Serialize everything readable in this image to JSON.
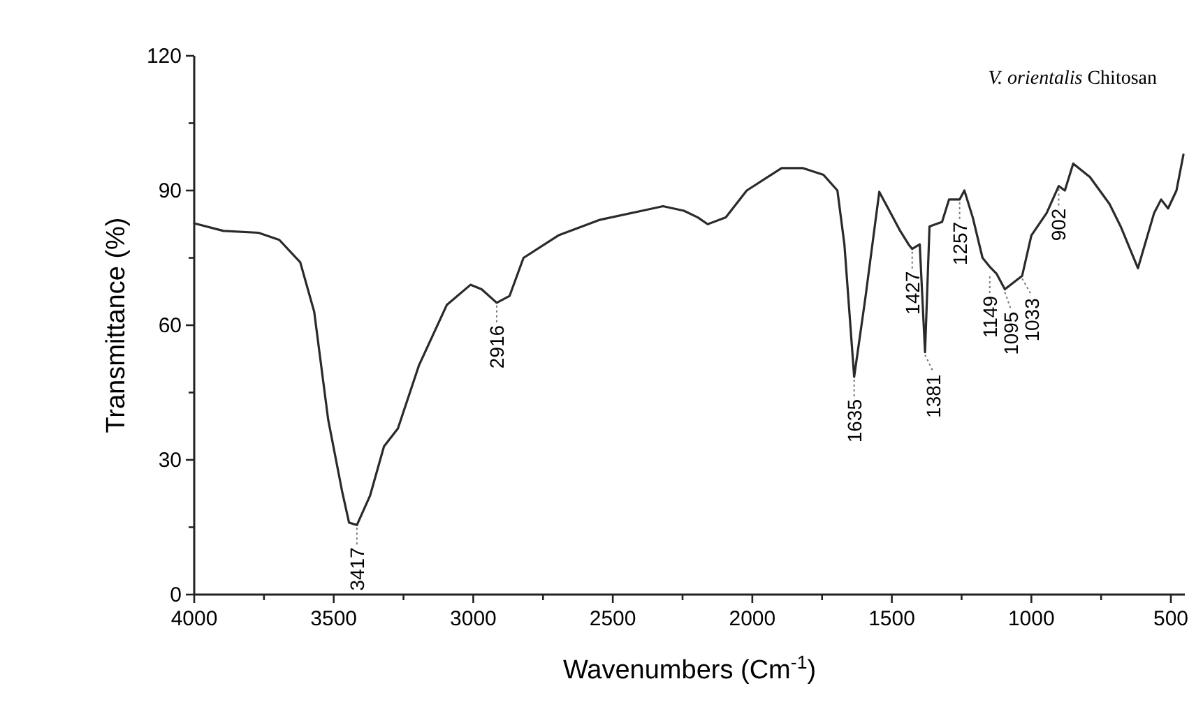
{
  "chart_data": {
    "type": "line",
    "title": "V. orientalis Chitosan",
    "xlabel": "Wavenumbers (Cm$^{-1}$)",
    "ylabel": "Transmittance (%)",
    "xlim": [
      4000,
      450
    ],
    "ylim": [
      0,
      120
    ],
    "xticks": [
      4000,
      {
        "value": 3750,
        "label": null
      },
      3500,
      {
        "value": 3250,
        "label": null
      },
      3000,
      {
        "value": 2750,
        "label": null
      },
      2500,
      {
        "value": 2250,
        "label": null
      },
      2000,
      {
        "value": 1750,
        "label": null
      },
      1500,
      {
        "value": 1250,
        "label": null
      },
      1000,
      {
        "value": 750,
        "label": null
      },
      500
    ],
    "yticks": [
      0,
      {
        "value": 15,
        "label": null
      },
      30,
      {
        "value": 45,
        "label": null
      },
      60,
      {
        "value": 75,
        "label": null
      },
      90,
      {
        "value": 105,
        "label": null
      },
      120
    ],
    "grid": false,
    "line_style": "solid",
    "series": [
      {
        "color": "#2a2a2a",
        "x": [
          4000,
          3895,
          3770,
          3695,
          3620,
          3570,
          3520,
          3470,
          3445,
          3417,
          3370,
          3320,
          3270,
          3195,
          3095,
          3010,
          2970,
          2916,
          2870,
          2820,
          2695,
          2545,
          2395,
          2320,
          2245,
          2195,
          2160,
          2095,
          2020,
          1895,
          1820,
          1745,
          1695,
          1670,
          1635,
          1595,
          1545,
          1470,
          1440,
          1427,
          1400,
          1381,
          1365,
          1320,
          1295,
          1257,
          1240,
          1210,
          1175,
          1149,
          1125,
          1095,
          1033,
          1000,
          945,
          902,
          880,
          850,
          790,
          720,
          680,
          618,
          560,
          535,
          510,
          480,
          455
        ],
        "values": [
          82.7,
          81,
          80.6,
          79,
          74,
          63,
          39,
          23,
          16,
          15.5,
          22,
          33,
          37,
          51,
          64.5,
          69,
          68,
          65,
          66.5,
          75,
          80,
          83.5,
          85.5,
          86.5,
          85.5,
          84,
          82.5,
          84,
          90,
          95,
          95,
          93.5,
          90,
          78,
          48.5,
          66,
          89.7,
          81,
          78,
          77,
          78,
          54,
          82,
          83,
          88,
          88,
          90,
          84,
          75,
          73,
          71.5,
          68,
          71,
          80,
          85,
          91,
          90,
          96,
          93,
          87,
          82,
          72.7,
          85,
          88,
          86,
          90,
          98
        ]
      }
    ],
    "annotations": [
      {
        "text": "3417",
        "x": 3417,
        "y": 15.5
      },
      {
        "text": "2916",
        "x": 2916,
        "y": 65
      },
      {
        "text": "1635",
        "x": 1635,
        "y": 48.5
      },
      {
        "text": "1427",
        "x": 1427,
        "y": 77
      },
      {
        "text": "1381",
        "x": 1381,
        "y": 54
      },
      {
        "text": "1257",
        "x": 1257,
        "y": 88
      },
      {
        "text": "1149",
        "x": 1149,
        "y": 71.5
      },
      {
        "text": "1095",
        "x": 1095,
        "y": 68
      },
      {
        "text": "1033",
        "x": 1033,
        "y": 71
      },
      {
        "text": "902",
        "x": 902,
        "y": 91
      }
    ]
  }
}
